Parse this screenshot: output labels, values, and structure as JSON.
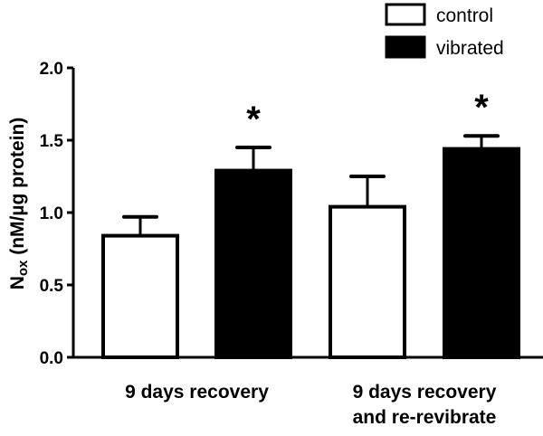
{
  "chart_data": {
    "type": "bar",
    "title": "",
    "xlabel": "",
    "ylabel": "N_ox (nM/µg protein)",
    "ylabel_main": "N",
    "ylabel_sub": "ox",
    "ylabel_rest": " (nM/µg protein)",
    "ylim": [
      0,
      2.0
    ],
    "yticks": [
      "0.0",
      "0.5",
      "1.0",
      "1.5",
      "2.0"
    ],
    "categories": [
      [
        "9 days recovery"
      ],
      [
        "9 days recovery",
        "and re-revibrate"
      ]
    ],
    "series": [
      {
        "name": "control",
        "color": "#ffffff",
        "values": [
          0.84,
          1.04
        ],
        "errors": [
          0.13,
          0.21
        ]
      },
      {
        "name": "vibrated",
        "color": "#000000",
        "values": [
          1.29,
          1.44
        ],
        "errors": [
          0.16,
          0.09
        ]
      }
    ],
    "annotations": [
      {
        "text": "*",
        "category": 0,
        "series": 1
      },
      {
        "text": "*",
        "category": 1,
        "series": 1
      }
    ],
    "grid": false,
    "legend": "top-right"
  }
}
